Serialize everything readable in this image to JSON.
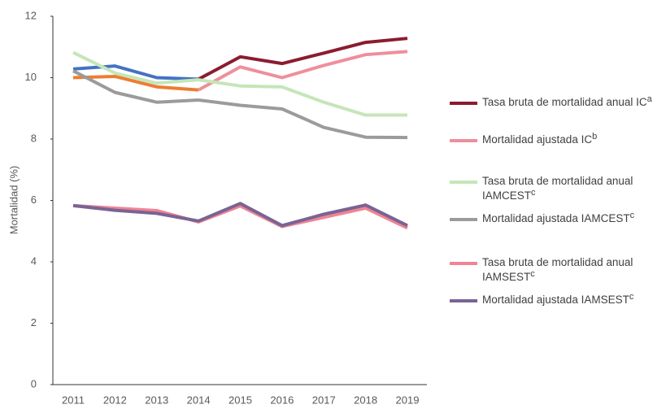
{
  "chart_data": {
    "type": "line",
    "y_label": "Mortalidad (%)",
    "x": [
      "2011",
      "2012",
      "2013",
      "2014",
      "2015",
      "2016",
      "2017",
      "2018",
      "2019"
    ],
    "ylim": [
      0,
      12
    ],
    "yticks": [
      0,
      2,
      4,
      6,
      8,
      10,
      12
    ],
    "grid": false,
    "legend": "right",
    "series": [
      {
        "name": "Tasa bruta de mortalidad anual IC",
        "sup": "a",
        "color": "#8b1c2f",
        "segment_colors": [
          "#4472c4",
          "#4472c4",
          "#4472c4",
          "#8b1c2f",
          "#8b1c2f",
          "#8b1c2f",
          "#8b1c2f",
          "#8b1c2f"
        ],
        "values": [
          10.28,
          10.38,
          10.0,
          9.95,
          10.68,
          10.46,
          10.8,
          11.15,
          11.28
        ]
      },
      {
        "name": "Mortalidad ajustada IC",
        "sup": "b",
        "color": "#f08e9b",
        "segment_colors": [
          "#ed7d31",
          "#ed7d31",
          "#ed7d31",
          "#f08e9b",
          "#f08e9b",
          "#f08e9b",
          "#f08e9b",
          "#f08e9b"
        ],
        "values": [
          10.0,
          10.04,
          9.7,
          9.6,
          10.35,
          10.0,
          10.4,
          10.75,
          10.85
        ]
      },
      {
        "name": "Tasa bruta de mortalidad anual IAMCEST",
        "sup": "c",
        "color": "#c5e6b8",
        "values": [
          10.82,
          10.15,
          9.82,
          9.93,
          9.73,
          9.7,
          9.2,
          8.78,
          8.78
        ]
      },
      {
        "name": "Mortalidad ajustada IAMCEST",
        "sup": "c",
        "color": "#9b9b9b",
        "values": [
          10.22,
          9.52,
          9.2,
          9.27,
          9.1,
          8.98,
          8.38,
          8.06,
          8.05
        ]
      },
      {
        "name": "Tasa bruta de mortalidad anual IAMSEST",
        "sup": "c",
        "color": "#ef8593",
        "values": [
          5.83,
          5.75,
          5.67,
          5.3,
          5.82,
          5.15,
          5.45,
          5.75,
          5.1
        ]
      },
      {
        "name": "Mortalidad ajustada IAMSEST",
        "sup": "c",
        "color": "#7a6394",
        "values": [
          5.83,
          5.68,
          5.58,
          5.33,
          5.9,
          5.18,
          5.55,
          5.85,
          5.18
        ]
      }
    ]
  }
}
